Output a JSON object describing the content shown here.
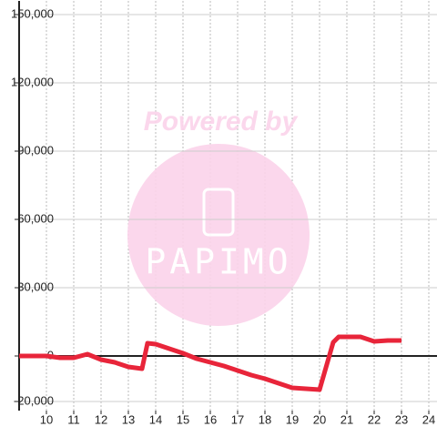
{
  "chart_data": {
    "type": "line",
    "x": [
      9,
      10,
      10.5,
      11,
      11.5,
      12,
      12.5,
      13,
      13.5,
      13.7,
      14,
      14.5,
      15,
      15.5,
      16,
      16.5,
      17,
      17.5,
      18,
      18.5,
      19,
      19.5,
      20,
      20.5,
      20.7,
      21,
      21.5,
      22,
      22.5,
      23
    ],
    "series": [
      {
        "color": "#e8253a",
        "values": [
          0,
          0,
          -800,
          -800,
          800,
          -1600,
          -2800,
          -4800,
          -5600,
          5600,
          5200,
          3200,
          1200,
          -1200,
          -2800,
          -4400,
          -6400,
          -8400,
          -10000,
          -12000,
          -14000,
          -14400,
          -14800,
          6000,
          8400,
          8400,
          8400,
          6400,
          6800,
          6800
        ]
      }
    ],
    "xlim": [
      9,
      24.3
    ],
    "xticks": [
      10,
      11,
      12,
      13,
      14,
      15,
      16,
      17,
      18,
      19,
      20,
      21,
      22,
      23,
      24
    ],
    "ylim": [
      -24000,
      156000
    ],
    "yticks": [
      {
        "value": -20000,
        "label": "-20,000"
      },
      0,
      {
        "value": 30000,
        "label": "30,000"
      },
      {
        "value": 60000,
        "label": "60,000"
      },
      {
        "value": 90000,
        "label": "90,000"
      },
      {
        "value": 120000,
        "label": "120,000"
      },
      {
        "value": 150000,
        "label": "150,000"
      }
    ],
    "grid": true,
    "watermark": {
      "text": "Powered by",
      "logo": "PAPIMO"
    }
  }
}
